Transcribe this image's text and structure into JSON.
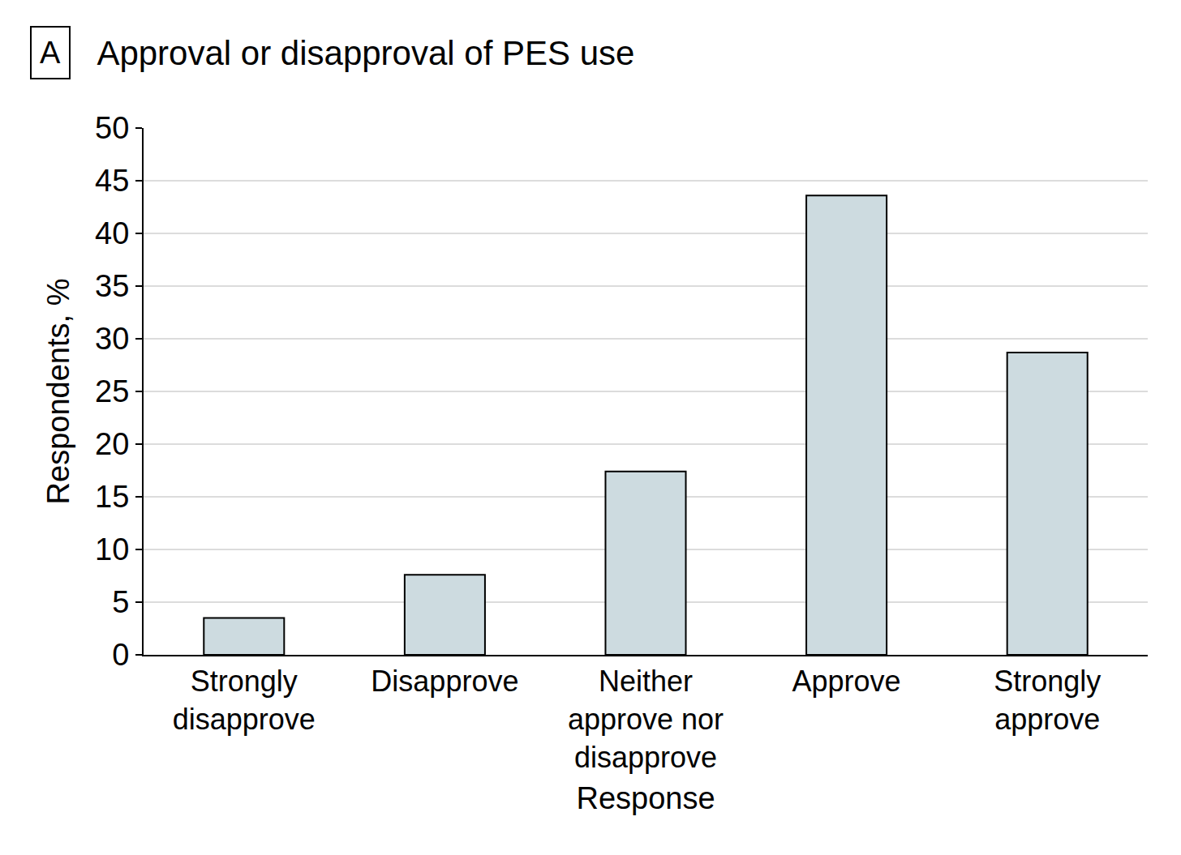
{
  "chart_data": {
    "type": "bar",
    "title": "Approval or disapproval of PES use",
    "annotations": [
      "A"
    ],
    "x_label": "Response",
    "y_label": "Respondents, %",
    "categories": [
      "Strongly disapprove",
      "Disapprove",
      "Neither approve nor disapprove",
      "Approve",
      "Strongly approve"
    ],
    "values": [
      3.5,
      7.6,
      17.4,
      43.6,
      28.7
    ],
    "color": "#cddbe0",
    "ylim": [
      0,
      50
    ],
    "yticks": [
      0,
      5,
      10,
      15,
      20,
      25,
      30,
      35,
      40,
      45,
      50
    ],
    "grid": true
  }
}
